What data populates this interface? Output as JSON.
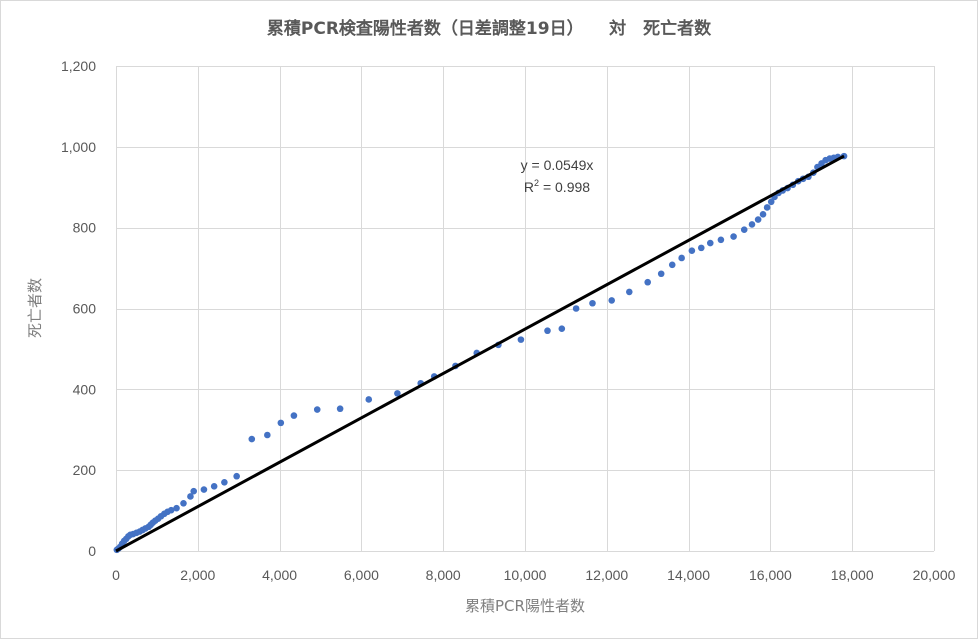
{
  "chart_data": {
    "type": "scatter",
    "title": "累積PCR検査陽性者数（日差調整19日）　　対　死亡者数",
    "xlabel": "累積PCR陽性者数",
    "ylabel": "死亡者数",
    "xlim": [
      0,
      20000
    ],
    "ylim": [
      0,
      1200
    ],
    "x_ticks": [
      0,
      2000,
      4000,
      6000,
      8000,
      10000,
      12000,
      14000,
      16000,
      18000,
      20000
    ],
    "y_ticks": [
      0,
      200,
      400,
      600,
      800,
      1000,
      1200
    ],
    "x_tick_labels": [
      "0",
      "2,000",
      "4,000",
      "6,000",
      "8,000",
      "10,000",
      "12,000",
      "14,000",
      "16,000",
      "18,000",
      "20,000"
    ],
    "y_tick_labels": [
      "0",
      "200",
      "400",
      "600",
      "800",
      "1,000",
      "1,200"
    ],
    "grid": true,
    "legend": "none",
    "series": [
      {
        "color": "#4472c4",
        "points": [
          [
            20,
            3
          ],
          [
            60,
            6
          ],
          [
            100,
            10
          ],
          [
            150,
            18
          ],
          [
            200,
            25
          ],
          [
            250,
            30
          ],
          [
            300,
            36
          ],
          [
            350,
            40
          ],
          [
            420,
            42
          ],
          [
            500,
            45
          ],
          [
            580,
            48
          ],
          [
            650,
            52
          ],
          [
            720,
            56
          ],
          [
            800,
            60
          ],
          [
            850,
            65
          ],
          [
            900,
            70
          ],
          [
            960,
            75
          ],
          [
            1030,
            80
          ],
          [
            1100,
            86
          ],
          [
            1180,
            92
          ],
          [
            1260,
            97
          ],
          [
            1350,
            101
          ],
          [
            1480,
            106
          ],
          [
            1650,
            118
          ],
          [
            1820,
            135
          ],
          [
            1900,
            148
          ],
          [
            2150,
            152
          ],
          [
            2400,
            160
          ],
          [
            2650,
            170
          ],
          [
            2950,
            185
          ],
          [
            3320,
            277
          ],
          [
            3700,
            287
          ],
          [
            4030,
            317
          ],
          [
            4350,
            335
          ],
          [
            4920,
            350
          ],
          [
            5480,
            352
          ],
          [
            6180,
            375
          ],
          [
            6880,
            390
          ],
          [
            7450,
            415
          ],
          [
            7780,
            432
          ],
          [
            8300,
            458
          ],
          [
            8820,
            490
          ],
          [
            9350,
            510
          ],
          [
            9900,
            523
          ],
          [
            10550,
            545
          ],
          [
            10900,
            550
          ],
          [
            11250,
            600
          ],
          [
            11650,
            613
          ],
          [
            12120,
            620
          ],
          [
            12550,
            641
          ],
          [
            13000,
            665
          ],
          [
            13330,
            686
          ],
          [
            13600,
            708
          ],
          [
            13830,
            725
          ],
          [
            14080,
            743
          ],
          [
            14310,
            750
          ],
          [
            14530,
            762
          ],
          [
            14790,
            770
          ],
          [
            15100,
            778
          ],
          [
            15360,
            795
          ],
          [
            15550,
            808
          ],
          [
            15700,
            820
          ],
          [
            15820,
            833
          ],
          [
            15920,
            850
          ],
          [
            16020,
            864
          ],
          [
            16100,
            876
          ],
          [
            16200,
            886
          ],
          [
            16300,
            892
          ],
          [
            16420,
            898
          ],
          [
            16550,
            906
          ],
          [
            16680,
            915
          ],
          [
            16800,
            921
          ],
          [
            16930,
            926
          ],
          [
            17050,
            936
          ],
          [
            17150,
            950
          ],
          [
            17250,
            959
          ],
          [
            17350,
            967
          ],
          [
            17450,
            971
          ],
          [
            17550,
            973
          ],
          [
            17650,
            975
          ],
          [
            17800,
            977
          ]
        ]
      }
    ],
    "trendline": {
      "slope": 0.0549,
      "intercept": 0,
      "x_range": [
        0,
        17800
      ],
      "color": "#000000",
      "equation": "y = 0.0549x",
      "r2_prefix": "R",
      "r2_sup": "2",
      "r2_suffix": " = 0.998"
    }
  }
}
